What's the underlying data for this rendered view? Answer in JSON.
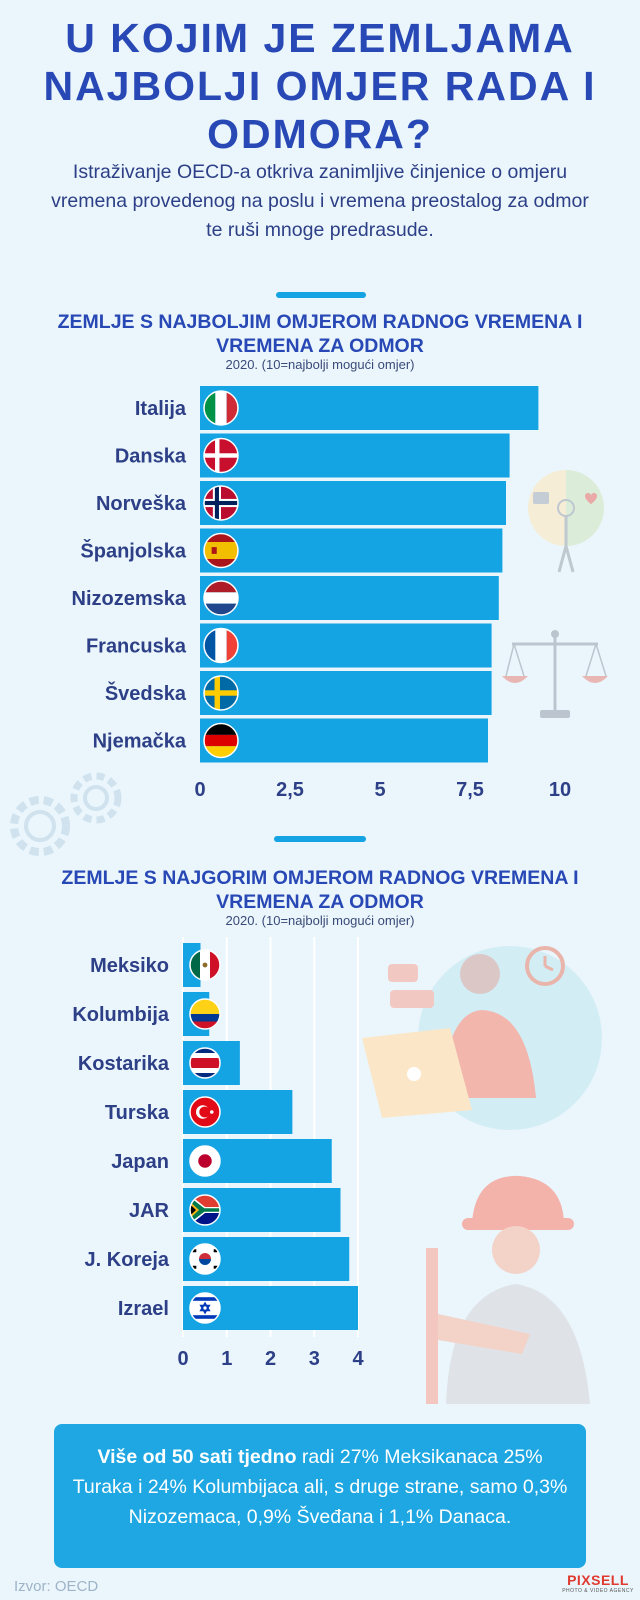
{
  "title": "U KOJIM JE ZEMLJAMA NAJBOLJI OMJER RADA I ODMORA?",
  "intro": "Istraživanje OECD-a otkriva zanimljive činjenice o omjeru vremena provedenog na poslu i vremena preostalog za odmor te ruši mnoge predrasude.",
  "chart_data": [
    {
      "type": "bar",
      "orientation": "horizontal",
      "title": "ZEMLJE S NAJBOLJIM OMJEROM RADNOG VREMENA I VREMENA ZA ODMOR",
      "subtitle": "2020. (10=najbolji mogući omjer)",
      "categories": [
        "Italija",
        "Danska",
        "Norveška",
        "Španjolska",
        "Nizozemska",
        "Francuska",
        "Švedska",
        "Njemačka"
      ],
      "values": [
        9.4,
        8.6,
        8.5,
        8.4,
        8.3,
        8.1,
        8.1,
        8.0
      ],
      "xlim": [
        0,
        10
      ],
      "ticks": [
        0,
        2.5,
        5,
        7.5,
        10
      ],
      "tick_labels": [
        "0",
        "2,5",
        "5",
        "7,5",
        "10"
      ],
      "grid": false,
      "bar_color": "#14a3e3",
      "flags": [
        "it",
        "dk",
        "no",
        "es",
        "nl",
        "fr",
        "se",
        "de"
      ]
    },
    {
      "type": "bar",
      "orientation": "horizontal",
      "title": "ZEMLJE S NAJGORIM OMJEROM RADNOG VREMENA I VREMENA ZA ODMOR",
      "subtitle": "2020. (10=najbolji mogući omjer)",
      "categories": [
        "Meksiko",
        "Kolumbija",
        "Kostarika",
        "Turska",
        "Japan",
        "JAR",
        "J. Koreja",
        "Izrael"
      ],
      "values": [
        0.4,
        0.6,
        1.3,
        2.5,
        3.4,
        3.6,
        3.8,
        4.0
      ],
      "xlim": [
        0,
        4
      ],
      "ticks": [
        0,
        1,
        2,
        3,
        4
      ],
      "tick_labels": [
        "0",
        "1",
        "2",
        "3",
        "4"
      ],
      "grid": true,
      "bar_color": "#14a3e3",
      "flags": [
        "mx",
        "co",
        "cr",
        "tr",
        "jp",
        "za",
        "kr",
        "il"
      ]
    }
  ],
  "bottom": {
    "bold": "Više od 50 sati tjedno",
    "rest": " radi 27% Meksikanaca 25% Turaka i 24% Kolumbijaca ali, s druge strane, samo 0,3% Nizozemaca, 0,9% Šveđana i 1,1% Danaca."
  },
  "source": "Izvor: OECD",
  "logo": {
    "brand": "PIXSELL",
    "tagline": "PHOTO & VIDEO AGENCY"
  },
  "colors": {
    "title": "#2848b5",
    "accent": "#14a3e3",
    "text": "#2d3f86",
    "background": "#eaf6fc"
  }
}
